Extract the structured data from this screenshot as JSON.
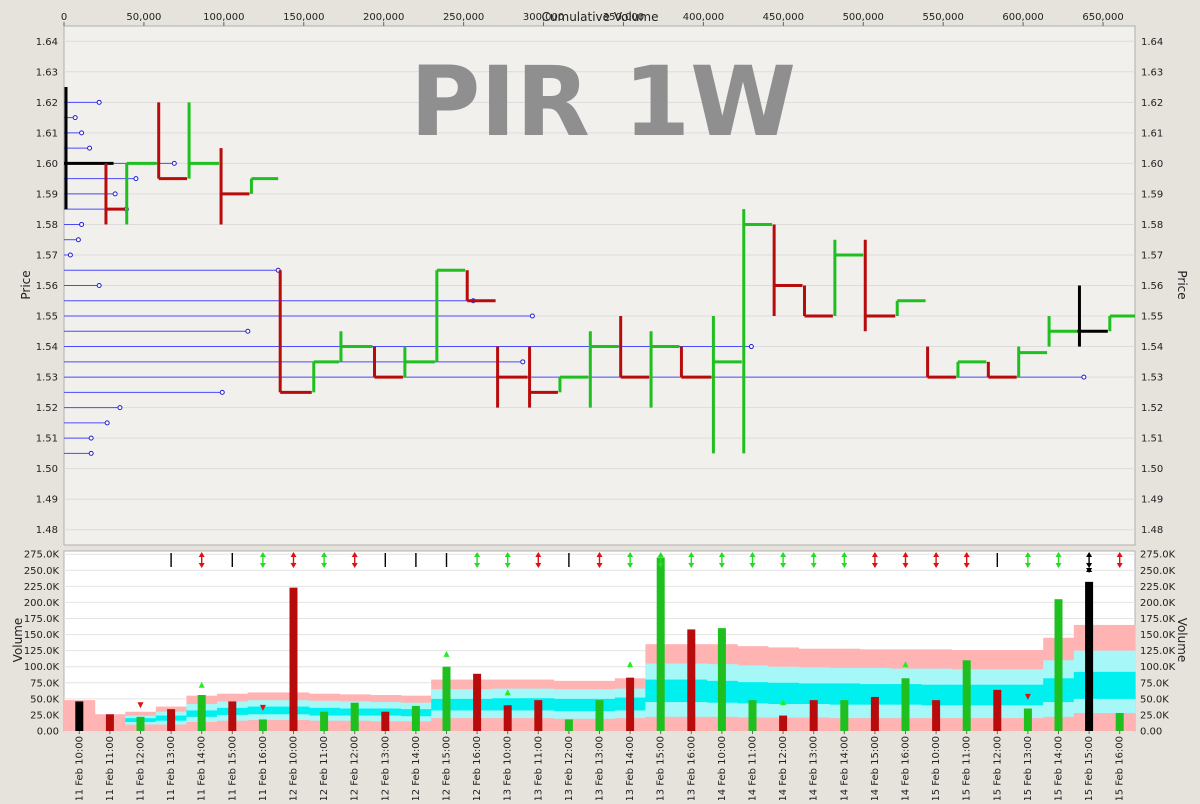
{
  "chart_data": [
    {
      "type": "price-volume-bars",
      "title": "PIR 1W",
      "xlabel": "Cumulative Volume",
      "ylabel": "Price",
      "xlim": [
        0,
        670000
      ],
      "ylim": [
        1.475,
        1.645
      ],
      "x_ticks": [
        0,
        50000,
        100000,
        150000,
        200000,
        250000,
        300000,
        350000,
        400000,
        450000,
        500000,
        550000,
        600000,
        650000
      ],
      "x_tick_labels": [
        "0",
        "50,000",
        "100,000",
        "150,000",
        "200,000",
        "250,000",
        "300,000",
        "350,000",
        "400,000",
        "450,000",
        "500,000",
        "550,000",
        "600,000",
        "650,000"
      ],
      "y_ticks": [
        1.48,
        1.49,
        1.5,
        1.51,
        1.52,
        1.53,
        1.54,
        1.55,
        1.56,
        1.57,
        1.58,
        1.59,
        1.6,
        1.61,
        1.62,
        1.63,
        1.64
      ],
      "y_tick_labels": [
        "1.48",
        "1.49",
        "1.50",
        "1.51",
        "1.52",
        "1.53",
        "1.54",
        "1.55",
        "1.56",
        "1.57",
        "1.58",
        "1.59",
        "1.60",
        "1.61",
        "1.62",
        "1.63",
        "1.64"
      ],
      "colors": {
        "up": "#1fbf1f",
        "down": "#b80c0c",
        "neutral": "#000000",
        "profile": "#4a4aff"
      },
      "volume_profile": [
        {
          "price": 1.62,
          "volume": 22000
        },
        {
          "price": 1.615,
          "volume": 7000
        },
        {
          "price": 1.61,
          "volume": 11000
        },
        {
          "price": 1.605,
          "volume": 16000
        },
        {
          "price": 1.6,
          "volume": 69000
        },
        {
          "price": 1.595,
          "volume": 45000
        },
        {
          "price": 1.59,
          "volume": 32000
        },
        {
          "price": 1.585,
          "volume": 39000
        },
        {
          "price": 1.58,
          "volume": 11000
        },
        {
          "price": 1.575,
          "volume": 9000
        },
        {
          "price": 1.57,
          "volume": 4000
        },
        {
          "price": 1.565,
          "volume": 134000
        },
        {
          "price": 1.56,
          "volume": 22000
        },
        {
          "price": 1.555,
          "volume": 256000
        },
        {
          "price": 1.55,
          "volume": 293000
        },
        {
          "price": 1.545,
          "volume": 115000
        },
        {
          "price": 1.54,
          "volume": 430000
        },
        {
          "price": 1.535,
          "volume": 287000
        },
        {
          "price": 1.53,
          "volume": 638000
        },
        {
          "price": 1.525,
          "volume": 99000
        },
        {
          "price": 1.52,
          "volume": 35000
        },
        {
          "price": 1.515,
          "volume": 27000
        },
        {
          "price": 1.51,
          "volume": 17000
        },
        {
          "price": 1.505,
          "volume": 17000
        }
      ],
      "bars": [
        {
          "x0": 0,
          "x1": 31000,
          "high": 1.625,
          "low": 1.585,
          "open": 1.6,
          "close": 1.6,
          "dir": "neutral"
        },
        {
          "x0": 25000,
          "x1": 38000,
          "high": 1.6,
          "low": 1.58,
          "open": 1.6,
          "close": 1.585,
          "dir": "down"
        },
        {
          "x0": 38000,
          "x1": 58000,
          "high": 1.6,
          "low": 1.58,
          "open": 1.58,
          "close": 1.6,
          "dir": "up"
        },
        {
          "x0": 58000,
          "x1": 77000,
          "high": 1.62,
          "low": 1.595,
          "open": 1.62,
          "close": 1.595,
          "dir": "down"
        },
        {
          "x0": 77000,
          "x1": 97000,
          "high": 1.62,
          "low": 1.595,
          "open": 1.595,
          "close": 1.6,
          "dir": "up"
        },
        {
          "x0": 97000,
          "x1": 116000,
          "high": 1.605,
          "low": 1.58,
          "open": 1.605,
          "close": 1.59,
          "dir": "down"
        },
        {
          "x0": 116000,
          "x1": 134000,
          "high": 1.595,
          "low": 1.59,
          "open": 1.59,
          "close": 1.595,
          "dir": "up"
        },
        {
          "x0": 134000,
          "x1": 155000,
          "high": 1.565,
          "low": 1.525,
          "open": 1.565,
          "close": 1.525,
          "dir": "down"
        },
        {
          "x0": 155000,
          "x1": 172000,
          "high": 1.535,
          "low": 1.525,
          "open": 1.525,
          "close": 1.535,
          "dir": "up"
        },
        {
          "x0": 172000,
          "x1": 193000,
          "high": 1.545,
          "low": 1.535,
          "open": 1.535,
          "close": 1.54,
          "dir": "up"
        },
        {
          "x0": 193000,
          "x1": 212000,
          "high": 1.54,
          "low": 1.53,
          "open": 1.54,
          "close": 1.53,
          "dir": "down"
        },
        {
          "x0": 212000,
          "x1": 232000,
          "high": 1.54,
          "low": 1.53,
          "open": 1.53,
          "close": 1.535,
          "dir": "up"
        },
        {
          "x0": 232000,
          "x1": 251000,
          "high": 1.565,
          "low": 1.535,
          "open": 1.535,
          "close": 1.565,
          "dir": "up"
        },
        {
          "x0": 251000,
          "x1": 270000,
          "high": 1.565,
          "low": 1.555,
          "open": 1.565,
          "close": 1.555,
          "dir": "down"
        },
        {
          "x0": 270000,
          "x1": 290000,
          "high": 1.54,
          "low": 1.52,
          "open": 1.54,
          "close": 1.53,
          "dir": "down"
        },
        {
          "x0": 290000,
          "x1": 309000,
          "high": 1.54,
          "low": 1.52,
          "open": 1.54,
          "close": 1.525,
          "dir": "down"
        },
        {
          "x0": 309000,
          "x1": 328000,
          "high": 1.53,
          "low": 1.525,
          "open": 1.525,
          "close": 1.53,
          "dir": "up"
        },
        {
          "x0": 328000,
          "x1": 347000,
          "high": 1.545,
          "low": 1.52,
          "open": 1.52,
          "close": 1.54,
          "dir": "up"
        },
        {
          "x0": 347000,
          "x1": 366000,
          "high": 1.55,
          "low": 1.53,
          "open": 1.55,
          "close": 1.53,
          "dir": "down"
        },
        {
          "x0": 366000,
          "x1": 385000,
          "high": 1.545,
          "low": 1.52,
          "open": 1.52,
          "close": 1.54,
          "dir": "up"
        },
        {
          "x0": 385000,
          "x1": 405000,
          "high": 1.54,
          "low": 1.53,
          "open": 1.54,
          "close": 1.53,
          "dir": "down"
        },
        {
          "x0": 405000,
          "x1": 424000,
          "high": 1.55,
          "low": 1.505,
          "open": 1.505,
          "close": 1.535,
          "dir": "up"
        },
        {
          "x0": 424000,
          "x1": 443000,
          "high": 1.585,
          "low": 1.505,
          "open": 1.505,
          "close": 1.58,
          "dir": "up"
        },
        {
          "x0": 443000,
          "x1": 462000,
          "high": 1.58,
          "low": 1.55,
          "open": 1.58,
          "close": 1.56,
          "dir": "down"
        },
        {
          "x0": 462000,
          "x1": 481000,
          "high": 1.56,
          "low": 1.55,
          "open": 1.56,
          "close": 1.55,
          "dir": "down"
        },
        {
          "x0": 481000,
          "x1": 500000,
          "high": 1.575,
          "low": 1.55,
          "open": 1.55,
          "close": 1.57,
          "dir": "up"
        },
        {
          "x0": 500000,
          "x1": 520000,
          "high": 1.575,
          "low": 1.545,
          "open": 1.575,
          "close": 1.55,
          "dir": "down"
        },
        {
          "x0": 520000,
          "x1": 539000,
          "high": 1.555,
          "low": 1.55,
          "open": 1.55,
          "close": 1.555,
          "dir": "up"
        },
        {
          "x0": 539000,
          "x1": 558000,
          "high": 1.54,
          "low": 1.53,
          "open": 1.54,
          "close": 1.53,
          "dir": "down"
        },
        {
          "x0": 558000,
          "x1": 577000,
          "high": 1.535,
          "low": 1.53,
          "open": 1.53,
          "close": 1.535,
          "dir": "up"
        },
        {
          "x0": 577000,
          "x1": 596000,
          "high": 1.535,
          "low": 1.53,
          "open": 1.535,
          "close": 1.53,
          "dir": "down"
        },
        {
          "x0": 596000,
          "x1": 615000,
          "high": 1.54,
          "low": 1.53,
          "open": 1.53,
          "close": 1.538,
          "dir": "up"
        },
        {
          "x0": 615000,
          "x1": 634000,
          "high": 1.55,
          "low": 1.54,
          "open": 1.54,
          "close": 1.545,
          "dir": "up"
        },
        {
          "x0": 634000,
          "x1": 653000,
          "high": 1.56,
          "low": 1.54,
          "open": 1.545,
          "close": 1.545,
          "dir": "neutral"
        },
        {
          "x0": 653000,
          "x1": 670000,
          "high": 1.55,
          "low": 1.545,
          "open": 1.545,
          "close": 1.55,
          "dir": "up"
        }
      ]
    },
    {
      "type": "bar",
      "ylabel": "Volume",
      "ylim": [
        0,
        280000
      ],
      "y_ticks": [
        0,
        25000,
        50000,
        75000,
        100000,
        125000,
        150000,
        175000,
        200000,
        225000,
        250000,
        275000
      ],
      "y_tick_labels": [
        "0.00",
        "25.0K",
        "50.0K",
        "75.0K",
        "100.0K",
        "125.0K",
        "150.0K",
        "175.0K",
        "200.0K",
        "225.0K",
        "250.0K",
        "275.0K"
      ],
      "categories": [
        "11 Feb 10:00",
        "11 Feb 11:00",
        "11 Feb 12:00",
        "11 Feb 13:00",
        "11 Feb 14:00",
        "11 Feb 15:00",
        "11 Feb 16:00",
        "12 Feb 10:00",
        "12 Feb 11:00",
        "12 Feb 12:00",
        "12 Feb 13:00",
        "12 Feb 14:00",
        "12 Feb 15:00",
        "12 Feb 16:00",
        "13 Feb 10:00",
        "13 Feb 11:00",
        "13 Feb 12:00",
        "13 Feb 13:00",
        "13 Feb 14:00",
        "13 Feb 15:00",
        "13 Feb 16:00",
        "14 Feb 10:00",
        "14 Feb 11:00",
        "14 Feb 12:00",
        "14 Feb 13:00",
        "14 Feb 14:00",
        "14 Feb 15:00",
        "14 Feb 16:00",
        "15 Feb 10:00",
        "15 Feb 11:00",
        "15 Feb 12:00",
        "15 Feb 13:00",
        "15 Feb 14:00",
        "15 Feb 15:00",
        "15 Feb 16:00"
      ],
      "values": [
        46000,
        26000,
        22000,
        34000,
        56000,
        46000,
        18000,
        223000,
        30000,
        44000,
        30000,
        39000,
        100000,
        89000,
        40000,
        48000,
        18000,
        48000,
        83000,
        270000,
        158000,
        160000,
        48000,
        24000,
        48000,
        48000,
        53000,
        82000,
        48000,
        110000,
        64000,
        35000,
        205000,
        232000,
        28000
      ],
      "directions": [
        "neutral",
        "down",
        "up",
        "down",
        "up",
        "down",
        "up",
        "down",
        "up",
        "up",
        "down",
        "up",
        "up",
        "down",
        "down",
        "down",
        "up",
        "up",
        "down",
        "up",
        "down",
        "up",
        "up",
        "down",
        "down",
        "up",
        "down",
        "up",
        "down",
        "up",
        "down",
        "up",
        "up",
        "neutral",
        "up"
      ],
      "bands": {
        "outer": [
          48000,
          26000,
          30000,
          38000,
          55000,
          58000,
          60000,
          60000,
          58000,
          57000,
          56000,
          55000,
          80000,
          80000,
          80000,
          80000,
          78000,
          78000,
          82000,
          135000,
          135000,
          135000,
          132000,
          130000,
          128000,
          128000,
          127000,
          127000,
          127000,
          126000,
          126000,
          126000,
          145000,
          165000,
          165000
        ],
        "upper": [
          0,
          0,
          24000,
          30000,
          42000,
          46000,
          48000,
          48000,
          47000,
          46000,
          45000,
          44000,
          65000,
          65000,
          66000,
          66000,
          65000,
          65000,
          66000,
          105000,
          105000,
          104000,
          102000,
          100000,
          99000,
          98000,
          98000,
          97000,
          97000,
          96000,
          96000,
          96000,
          110000,
          125000,
          125000
        ],
        "middle": [
          0,
          0,
          20000,
          24000,
          32000,
          36000,
          38000,
          38000,
          36000,
          35000,
          35000,
          34000,
          50000,
          50000,
          51000,
          51000,
          50000,
          50000,
          52000,
          80000,
          80000,
          78000,
          76000,
          75000,
          74000,
          74000,
          73000,
          73000,
          72000,
          72000,
          72000,
          72000,
          82000,
          92000,
          92000
        ],
        "lower": [
          0,
          0,
          14000,
          16000,
          22000,
          25000,
          26000,
          26000,
          24000,
          24000,
          24000,
          23000,
          32000,
          32000,
          32000,
          32000,
          31000,
          31000,
          32000,
          45000,
          45000,
          44000,
          43000,
          42000,
          42000,
          41000,
          41000,
          41000,
          40000,
          40000,
          40000,
          40000,
          45000,
          50000,
          50000
        ],
        "base": [
          0,
          0,
          10000,
          10000,
          14000,
          16000,
          17000,
          17000,
          16000,
          16000,
          15000,
          15000,
          20000,
          20000,
          20000,
          20000,
          19000,
          19000,
          20000,
          22000,
          22000,
          22000,
          21000,
          21000,
          21000,
          20000,
          20000,
          20000,
          20000,
          20000,
          20000,
          20000,
          22000,
          28000,
          28000
        ]
      },
      "markers": [
        {
          "i": 2,
          "v": 40000,
          "dir": "down"
        },
        {
          "i": 4,
          "v": 72000,
          "dir": "up"
        },
        {
          "i": 6,
          "v": 36000,
          "dir": "down"
        },
        {
          "i": 12,
          "v": 120000,
          "dir": "up"
        },
        {
          "i": 14,
          "v": 60000,
          "dir": "up"
        },
        {
          "i": 18,
          "v": 104000,
          "dir": "up"
        },
        {
          "i": 23,
          "v": 45000,
          "dir": "up"
        },
        {
          "i": 27,
          "v": 104000,
          "dir": "up"
        },
        {
          "i": 31,
          "v": 53000,
          "dir": "down"
        }
      ],
      "top_signals": [
        "none",
        "none",
        "none",
        "neutral",
        "down-up",
        "neutral",
        "up-down",
        "down-up",
        "up-down",
        "down-up",
        "neutral",
        "neutral",
        "neutral",
        "up-down",
        "up-down",
        "down-up",
        "neutral",
        "down-up",
        "up-down",
        "up-down",
        "up-down",
        "up-down",
        "up-down",
        "up-down",
        "up-down",
        "up-down",
        "down-up",
        "down-up",
        "down-up",
        "down-up",
        "neutral",
        "up-down",
        "up-down",
        "both",
        "down-up"
      ]
    }
  ]
}
